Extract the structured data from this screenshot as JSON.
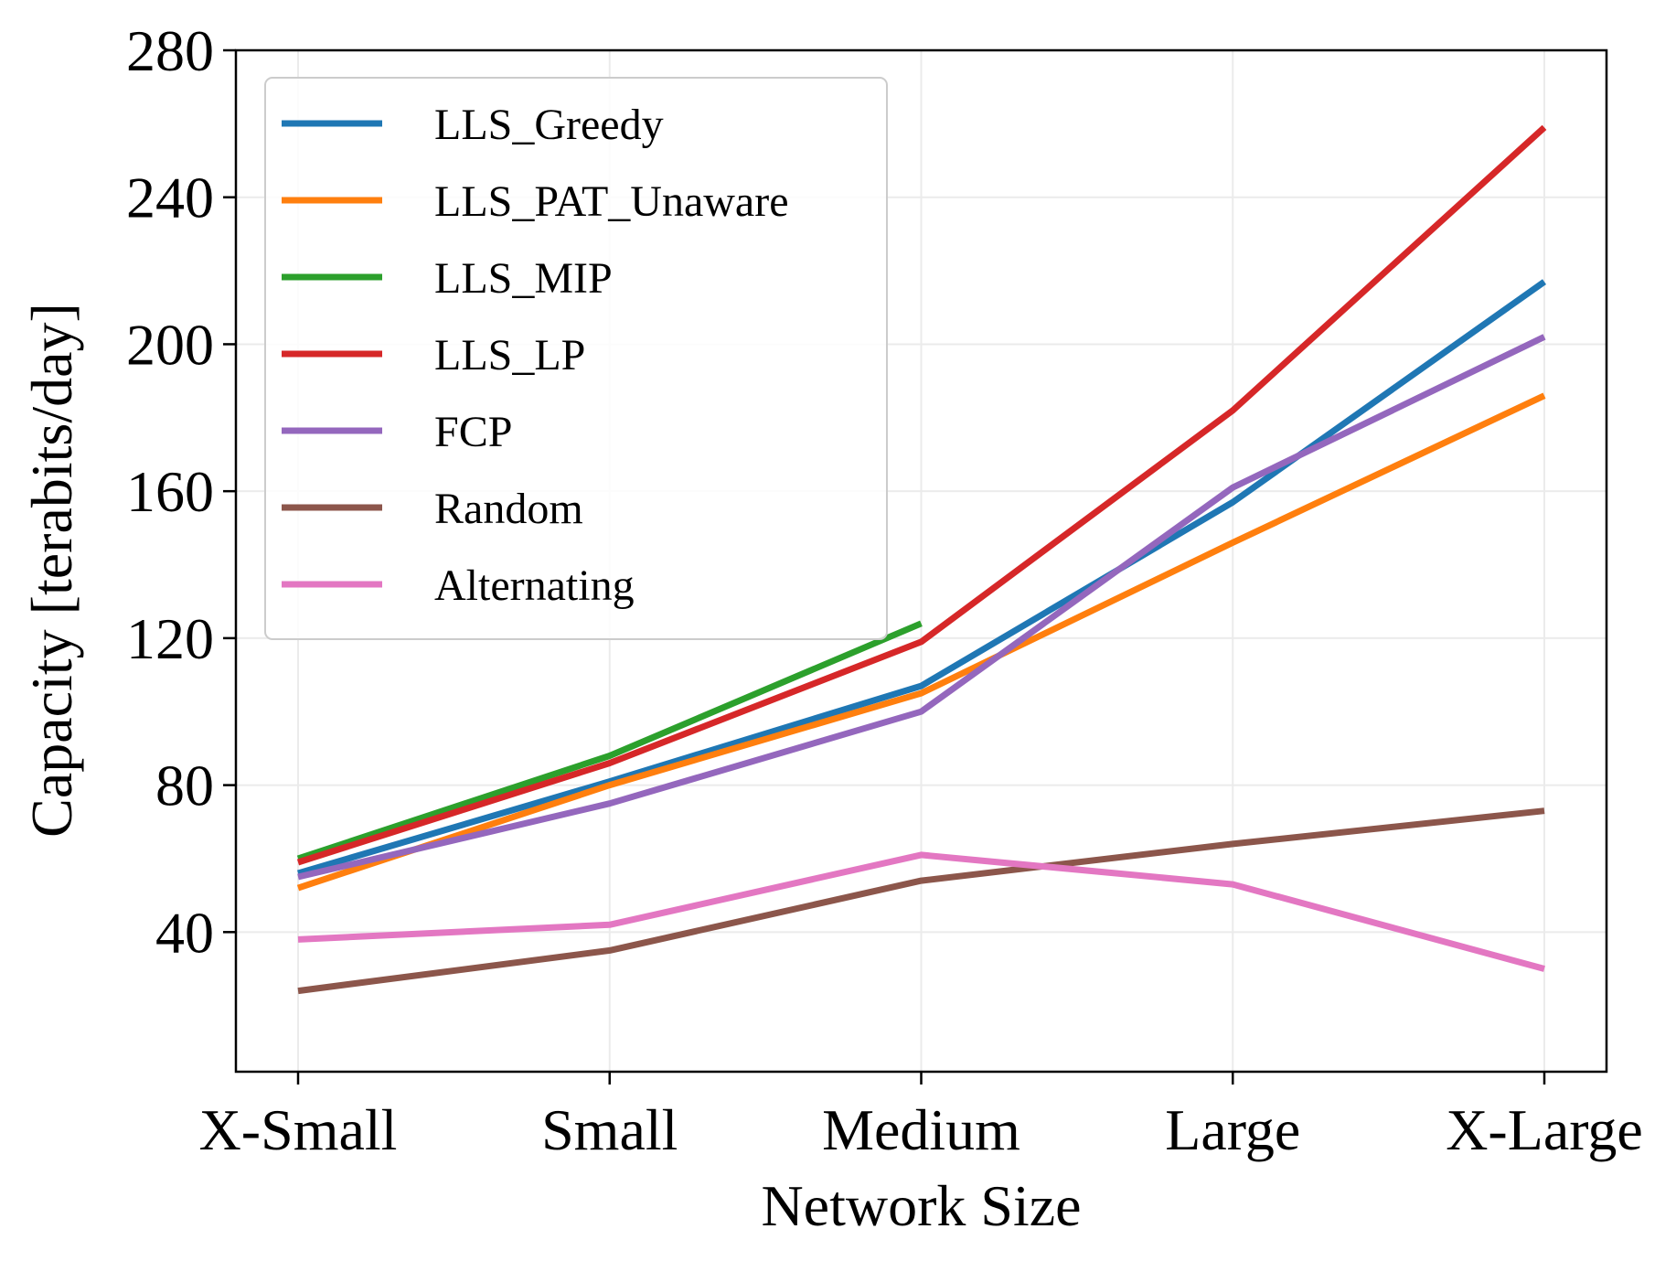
{
  "chart_data": {
    "type": "line",
    "title": "",
    "xlabel": "Network Size",
    "ylabel": "Capacity [terabits/day]",
    "categories": [
      "X-Small",
      "Small",
      "Medium",
      "Large",
      "X-Large"
    ],
    "ylim": [
      2,
      280
    ],
    "yticks": [
      40,
      80,
      120,
      160,
      200,
      240,
      280
    ],
    "grid": true,
    "legend_position": "top-left",
    "series": [
      {
        "name": "LLS_Greedy",
        "color": "#1f77b4",
        "values": [
          56,
          81,
          107,
          157,
          217
        ]
      },
      {
        "name": "LLS_PAT_Unaware",
        "color": "#ff7f0e",
        "values": [
          52,
          80,
          105,
          146,
          186
        ]
      },
      {
        "name": "LLS_MIP",
        "color": "#2ca02c",
        "values": [
          60,
          88,
          124,
          null,
          null
        ]
      },
      {
        "name": "LLS_LP",
        "color": "#d62728",
        "values": [
          59,
          86,
          119,
          182,
          259
        ]
      },
      {
        "name": "FCP",
        "color": "#9467bd",
        "values": [
          55,
          75,
          100,
          161,
          202
        ]
      },
      {
        "name": "Random",
        "color": "#8c564b",
        "values": [
          24,
          35,
          54,
          64,
          73
        ]
      },
      {
        "name": "Alternating",
        "color": "#e377c2",
        "values": [
          38,
          42,
          61,
          53,
          30
        ]
      }
    ]
  }
}
